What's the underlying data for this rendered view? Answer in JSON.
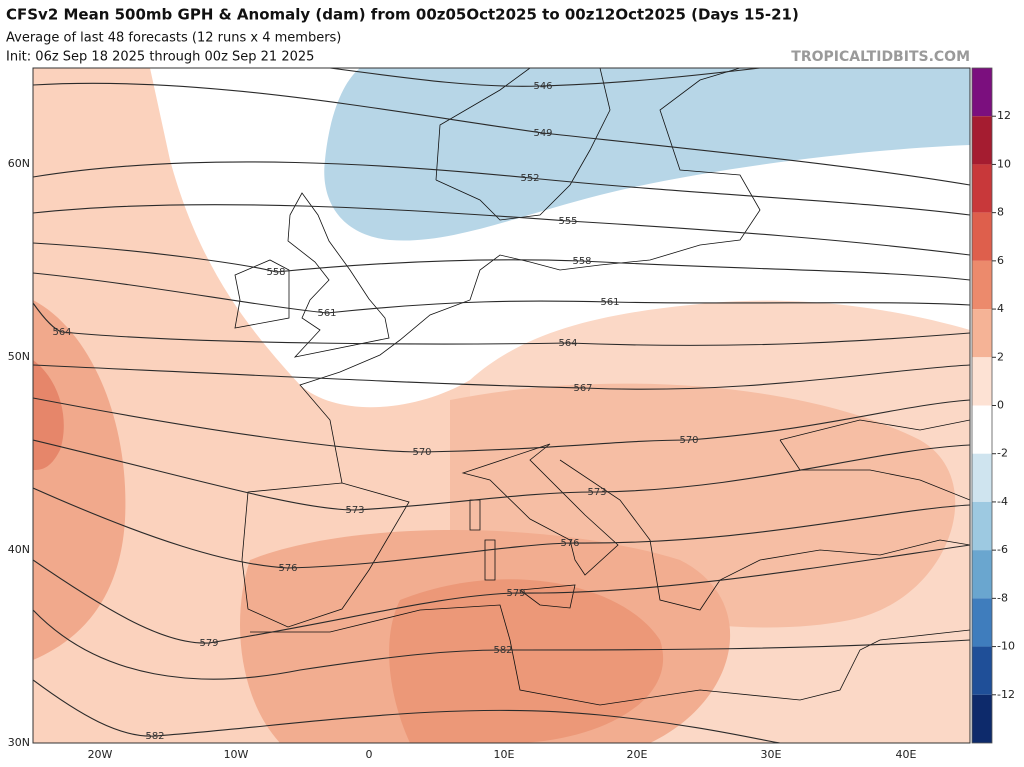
{
  "header": {
    "title": "CFSv2 Mean 500mb GPH & Anomaly (dam) from 00z05Oct2025 to 00z12Oct2025 (Days 15-21)",
    "subtitle": "Average of last 48 forecasts (12 runs x 4 members)",
    "init": "Init: 06z Sep 18 2025 through 00z Sep 21 2025",
    "watermark": "TROPICALTIDBITS.COM"
  },
  "map": {
    "lat_labels": [
      "60N",
      "50N",
      "40N",
      "30N"
    ],
    "lon_labels": [
      "20W",
      "10W",
      "0",
      "10E",
      "20E",
      "30E",
      "40E"
    ],
    "contour_labels": [
      "546",
      "549",
      "552",
      "555",
      "558",
      "561",
      "564",
      "567",
      "570",
      "573",
      "576",
      "579",
      "582",
      "564",
      "558",
      "561",
      "570",
      "573",
      "576",
      "579",
      "582"
    ]
  },
  "colorbar": {
    "ticks": [
      12,
      10,
      8,
      6,
      4,
      2,
      0,
      -2,
      -4,
      -6,
      -8,
      -10,
      -12
    ],
    "colors": [
      "#7b0f7e",
      "#a51c30",
      "#c8383a",
      "#de5f4c",
      "#ec8a6c",
      "#f5b396",
      "#fde2d4",
      "#ffffff",
      "#cfe4ef",
      "#9dc9e1",
      "#6aa6cf",
      "#3f7dbd",
      "#1f4f98",
      "#0d2a6b"
    ]
  }
}
